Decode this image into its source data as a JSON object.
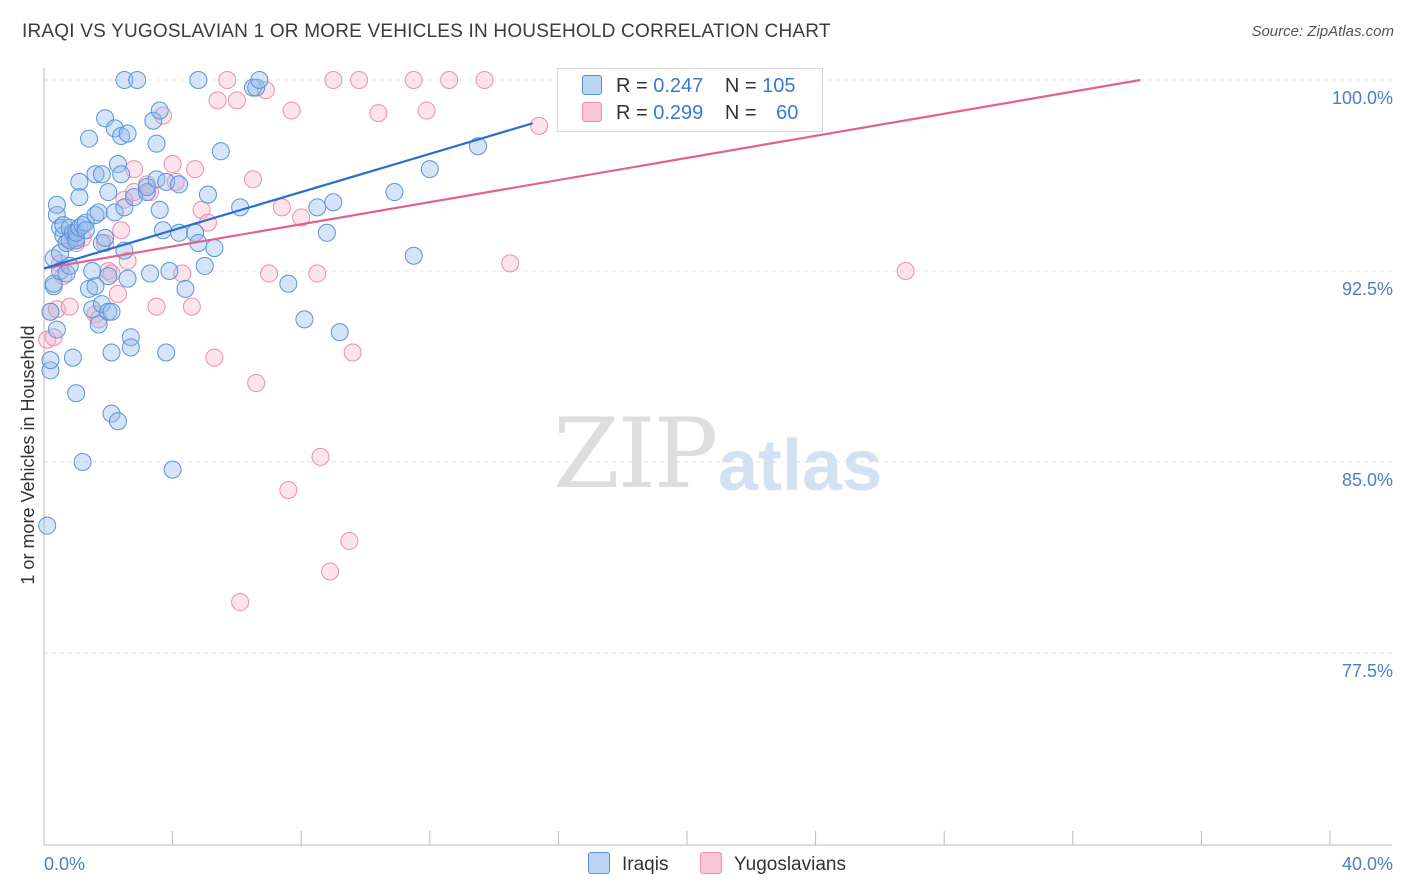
{
  "title": "IRAQI VS YUGOSLAVIAN 1 OR MORE VEHICLES IN HOUSEHOLD CORRELATION CHART",
  "source": "Source: ZipAtlas.com",
  "watermark": {
    "zip": "ZIP",
    "atlas": "atlas"
  },
  "colors": {
    "iraqis": "#5b93d8",
    "yugoslavians": "#f08cad",
    "iraqis_line": "#2b6fd0",
    "yugoslavians_line": "#e0638f",
    "tick_text": "#4a7fc8"
  },
  "legend": {
    "iraqis": {
      "r_label": "R =",
      "r_value": "0.247",
      "n_label": "N =",
      "n_value": "105"
    },
    "yugoslavians": {
      "r_label": "R =",
      "r_value": "0.299",
      "n_label": "N =",
      "n_value": "60"
    }
  },
  "bottom_legend": {
    "iraqis": "Iraqis",
    "yugoslavians": "Yugoslavians"
  },
  "chart_data": {
    "type": "scatter",
    "title": "IRAQI VS YUGOSLAVIAN 1 OR MORE VEHICLES IN HOUSEHOLD CORRELATION CHART",
    "xlabel": "",
    "ylabel": "1 or more Vehicles in Household",
    "xlim": [
      0,
      40
    ],
    "ylim": [
      70.0,
      100.7
    ],
    "x_tick_labels": [
      "0.0%",
      "40.0%"
    ],
    "y_ticks": [
      77.5,
      85.0,
      92.5,
      100.0
    ],
    "y_tick_labels": [
      "77.5%",
      "85.0%",
      "92.5%",
      "100.0%"
    ],
    "series": [
      {
        "name": "Iraqis",
        "r": 0.247,
        "n": 105,
        "trend": {
          "x": [
            0,
            15.2
          ],
          "y": [
            92.6,
            98.3
          ]
        },
        "points": [
          [
            0.1,
            82.5
          ],
          [
            0.2,
            88.6
          ],
          [
            0.2,
            89.0
          ],
          [
            0.2,
            90.9
          ],
          [
            0.3,
            91.9
          ],
          [
            0.3,
            92.0
          ],
          [
            0.3,
            93.0
          ],
          [
            0.4,
            94.7
          ],
          [
            0.4,
            95.1
          ],
          [
            0.4,
            90.2
          ],
          [
            0.5,
            92.5
          ],
          [
            0.5,
            93.2
          ],
          [
            0.5,
            94.2
          ],
          [
            0.6,
            93.9
          ],
          [
            0.6,
            94.3
          ],
          [
            0.7,
            93.6
          ],
          [
            0.7,
            92.4
          ],
          [
            0.8,
            94.2
          ],
          [
            0.8,
            93.7
          ],
          [
            0.8,
            92.7
          ],
          [
            0.9,
            89.1
          ],
          [
            0.9,
            94.0
          ],
          [
            1.0,
            93.8
          ],
          [
            1.0,
            93.7
          ],
          [
            1.0,
            94.0
          ],
          [
            1.0,
            87.7
          ],
          [
            1.1,
            94.2
          ],
          [
            1.1,
            96.0
          ],
          [
            1.1,
            95.4
          ],
          [
            1.2,
            85.0
          ],
          [
            1.2,
            94.3
          ],
          [
            1.3,
            94.4
          ],
          [
            1.3,
            94.1
          ],
          [
            1.4,
            97.7
          ],
          [
            1.4,
            91.8
          ],
          [
            1.5,
            91.0
          ],
          [
            1.5,
            92.5
          ],
          [
            1.6,
            94.7
          ],
          [
            1.6,
            96.3
          ],
          [
            1.6,
            91.9
          ],
          [
            1.7,
            90.4
          ],
          [
            1.7,
            94.8
          ],
          [
            1.8,
            93.6
          ],
          [
            1.8,
            96.3
          ],
          [
            1.8,
            91.2
          ],
          [
            1.9,
            98.5
          ],
          [
            1.9,
            93.8
          ],
          [
            2.0,
            95.6
          ],
          [
            2.0,
            92.3
          ],
          [
            2.0,
            90.9
          ],
          [
            2.1,
            90.9
          ],
          [
            2.1,
            89.3
          ],
          [
            2.1,
            86.9
          ],
          [
            2.2,
            98.1
          ],
          [
            2.2,
            94.8
          ],
          [
            2.3,
            96.7
          ],
          [
            2.3,
            86.6
          ],
          [
            2.4,
            96.3
          ],
          [
            2.4,
            97.8
          ],
          [
            2.5,
            100.0
          ],
          [
            2.5,
            93.3
          ],
          [
            2.5,
            95.0
          ],
          [
            2.6,
            92.2
          ],
          [
            2.6,
            97.9
          ],
          [
            2.7,
            89.9
          ],
          [
            2.7,
            89.5
          ],
          [
            2.8,
            95.4
          ],
          [
            2.9,
            100.0
          ],
          [
            3.2,
            95.6
          ],
          [
            3.2,
            95.8
          ],
          [
            3.3,
            92.4
          ],
          [
            3.4,
            98.4
          ],
          [
            3.5,
            97.5
          ],
          [
            3.5,
            96.1
          ],
          [
            3.6,
            98.8
          ],
          [
            3.6,
            94.9
          ],
          [
            3.7,
            94.1
          ],
          [
            3.8,
            96.0
          ],
          [
            3.8,
            89.3
          ],
          [
            3.9,
            92.5
          ],
          [
            4.0,
            84.7
          ],
          [
            4.2,
            94.0
          ],
          [
            4.2,
            95.9
          ],
          [
            4.4,
            91.8
          ],
          [
            4.7,
            94.0
          ],
          [
            4.8,
            100.0
          ],
          [
            4.8,
            93.6
          ],
          [
            5.0,
            92.7
          ],
          [
            5.1,
            95.5
          ],
          [
            5.3,
            93.4
          ],
          [
            5.5,
            97.2
          ],
          [
            6.1,
            95.0
          ],
          [
            6.5,
            99.7
          ],
          [
            6.6,
            99.7
          ],
          [
            6.7,
            100.0
          ],
          [
            7.6,
            92.0
          ],
          [
            8.1,
            90.6
          ],
          [
            8.5,
            95.0
          ],
          [
            8.8,
            94.0
          ],
          [
            9.0,
            95.2
          ],
          [
            9.2,
            90.1
          ],
          [
            10.9,
            95.6
          ],
          [
            11.5,
            93.1
          ],
          [
            12.0,
            96.5
          ],
          [
            13.5,
            97.4
          ]
        ]
      },
      {
        "name": "Yugoslavians",
        "r": 0.299,
        "n": 60,
        "trend": {
          "x": [
            0,
            34.1
          ],
          "y": [
            92.6,
            100.0
          ]
        },
        "points": [
          [
            0.1,
            89.8
          ],
          [
            0.2,
            90.9
          ],
          [
            0.3,
            89.9
          ],
          [
            0.4,
            91.0
          ],
          [
            0.5,
            92.8
          ],
          [
            0.6,
            92.3
          ],
          [
            0.8,
            91.1
          ],
          [
            0.9,
            93.7
          ],
          [
            1.0,
            93.6
          ],
          [
            1.2,
            93.8
          ],
          [
            1.6,
            90.8
          ],
          [
            1.7,
            90.6
          ],
          [
            1.9,
            93.6
          ],
          [
            2.0,
            92.5
          ],
          [
            2.1,
            92.4
          ],
          [
            2.3,
            91.6
          ],
          [
            2.4,
            94.1
          ],
          [
            2.5,
            95.3
          ],
          [
            2.6,
            92.9
          ],
          [
            2.8,
            95.6
          ],
          [
            2.8,
            96.5
          ],
          [
            3.2,
            95.9
          ],
          [
            3.3,
            95.6
          ],
          [
            3.5,
            91.1
          ],
          [
            3.7,
            98.6
          ],
          [
            4.0,
            96.7
          ],
          [
            4.1,
            96.0
          ],
          [
            4.3,
            92.4
          ],
          [
            4.6,
            91.1
          ],
          [
            4.7,
            96.5
          ],
          [
            4.9,
            94.9
          ],
          [
            5.1,
            94.4
          ],
          [
            5.3,
            89.1
          ],
          [
            5.4,
            99.2
          ],
          [
            5.7,
            100.0
          ],
          [
            6.0,
            99.2
          ],
          [
            6.1,
            79.5
          ],
          [
            6.5,
            96.1
          ],
          [
            6.6,
            88.1
          ],
          [
            6.9,
            99.6
          ],
          [
            7.0,
            92.4
          ],
          [
            7.4,
            95.0
          ],
          [
            7.6,
            83.9
          ],
          [
            7.7,
            98.8
          ],
          [
            8.0,
            94.6
          ],
          [
            8.5,
            92.4
          ],
          [
            8.6,
            85.2
          ],
          [
            8.9,
            80.7
          ],
          [
            9.0,
            100.0
          ],
          [
            9.5,
            81.9
          ],
          [
            9.6,
            89.3
          ],
          [
            9.8,
            100.0
          ],
          [
            10.4,
            98.7
          ],
          [
            11.5,
            100.0
          ],
          [
            11.9,
            98.8
          ],
          [
            12.6,
            100.0
          ],
          [
            13.7,
            100.0
          ],
          [
            14.5,
            92.8
          ],
          [
            15.4,
            98.2
          ],
          [
            26.8,
            92.5
          ]
        ]
      }
    ]
  }
}
